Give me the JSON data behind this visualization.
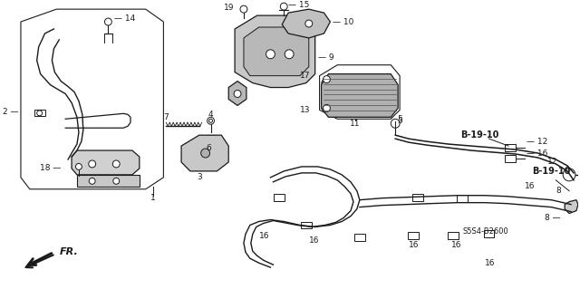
{
  "bg_color": "#ffffff",
  "fig_width": 6.4,
  "fig_height": 3.19,
  "dpi": 100,
  "ref_code": "S5S4-B2600",
  "callout1_text": "B-19-10",
  "callout2_text": "B-19-10",
  "fr_text": "FR."
}
